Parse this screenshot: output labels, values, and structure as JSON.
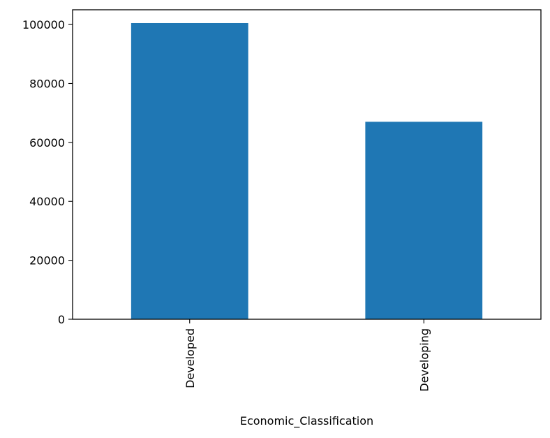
{
  "chart_data": {
    "type": "bar",
    "categories": [
      "Developed",
      "Developing"
    ],
    "values": [
      100500,
      67000
    ],
    "title": "",
    "xlabel": "Economic_Classification",
    "ylabel": "",
    "ylim": [
      0,
      105000
    ],
    "yticks": [
      0,
      20000,
      40000,
      60000,
      80000,
      100000
    ],
    "bar_color": "#1f77b4",
    "grid": false,
    "legend": "none"
  }
}
